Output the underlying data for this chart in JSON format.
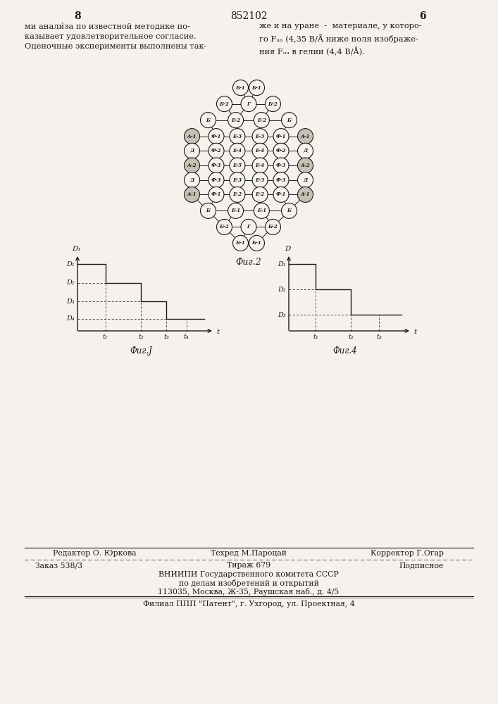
{
  "page_number_left": "8",
  "page_number_center": "852102",
  "page_number_right": "6",
  "background_color": "#f5f2ed",
  "text_color": "#1a1a1a",
  "fig2_caption": "Фиг.2",
  "fig3_caption": "Фиг.J",
  "fig4_caption": "Фиг.4",
  "footer_editor": "Редактор О. Юркова",
  "footer_tech": "Техред М.Пароцай",
  "footer_corrector": "Корректор Г.Огар",
  "footer_order": "Заказ 538/3",
  "footer_tirage": "Тираж 679",
  "footer_podpisnoe": "Подписное",
  "footer_vnipi1": "ВНИИПИ Государственного комитета СССР",
  "footer_vnipi2": "по делам изобретений и открытий",
  "footer_vnipi3": "113035, Москва, Ж-35, Раушская наб., д. 4/5",
  "footer_filial": "Филиал ППП \"Патент\", г. Ухгород, ул. Проектная, 4"
}
